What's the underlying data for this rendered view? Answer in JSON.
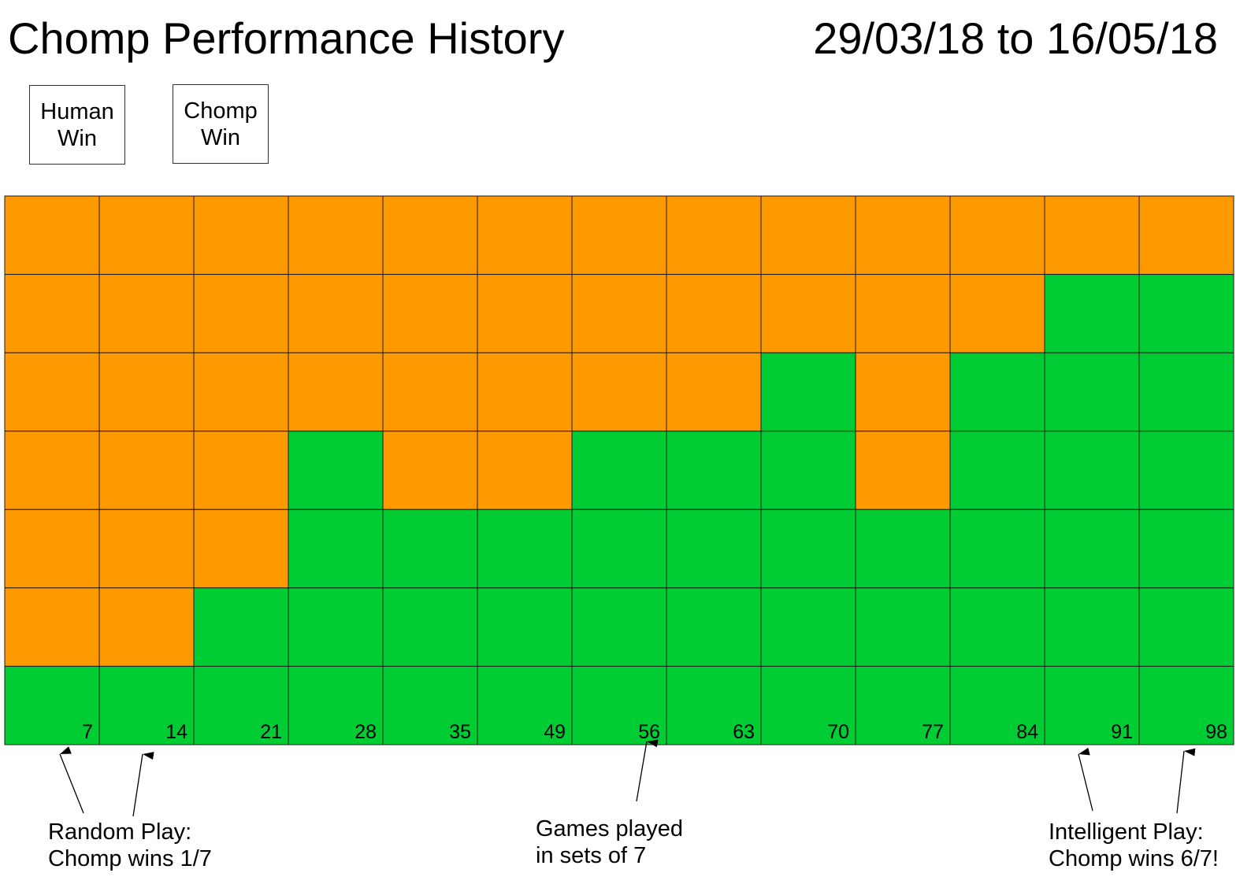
{
  "header": {
    "title": "Chomp Performance History",
    "date_range": "29/03/18 to 16/05/18"
  },
  "legend": {
    "human": {
      "label": "Human\nWin",
      "color": "#ff9900"
    },
    "chomp": {
      "label": "Chomp\nWin",
      "color": "#00cc33"
    }
  },
  "chart_data": {
    "type": "heatmap",
    "categories": [
      "7",
      "14",
      "21",
      "28",
      "35",
      "49",
      "56",
      "63",
      "70",
      "77",
      "84",
      "91",
      "98"
    ],
    "series": [
      {
        "name": "Human Win",
        "values": [
          6,
          6,
          5,
          3,
          4,
          4,
          3,
          3,
          2,
          4,
          2,
          1,
          1
        ]
      },
      {
        "name": "Chomp Win",
        "values": [
          1,
          1,
          2,
          4,
          3,
          3,
          4,
          4,
          5,
          3,
          5,
          6,
          6
        ]
      }
    ],
    "columns": [
      [
        "H",
        "H",
        "H",
        "H",
        "H",
        "H",
        "C"
      ],
      [
        "H",
        "H",
        "H",
        "H",
        "H",
        "H",
        "C"
      ],
      [
        "H",
        "H",
        "H",
        "H",
        "H",
        "C",
        "C"
      ],
      [
        "H",
        "H",
        "H",
        "C",
        "C",
        "C",
        "C"
      ],
      [
        "H",
        "H",
        "H",
        "H",
        "C",
        "C",
        "C"
      ],
      [
        "H",
        "H",
        "H",
        "H",
        "C",
        "C",
        "C"
      ],
      [
        "H",
        "H",
        "H",
        "C",
        "C",
        "C",
        "C"
      ],
      [
        "H",
        "H",
        "H",
        "C",
        "C",
        "C",
        "C"
      ],
      [
        "H",
        "H",
        "C",
        "C",
        "C",
        "C",
        "C"
      ],
      [
        "H",
        "H",
        "H",
        "H",
        "C",
        "C",
        "C"
      ],
      [
        "H",
        "H",
        "C",
        "C",
        "C",
        "C",
        "C"
      ],
      [
        "H",
        "C",
        "C",
        "C",
        "C",
        "C",
        "C"
      ],
      [
        "H",
        "C",
        "C",
        "C",
        "C",
        "C",
        "C"
      ]
    ],
    "games_per_set": 7,
    "grid_lines": true,
    "legend_position": "top-left"
  },
  "annotations": {
    "random_play": "Random Play:\nChomp wins 1/7",
    "games_played": "Games played\nin sets of 7",
    "intelligent_play": "Intelligent Play:\nChomp wins 6/7!"
  }
}
